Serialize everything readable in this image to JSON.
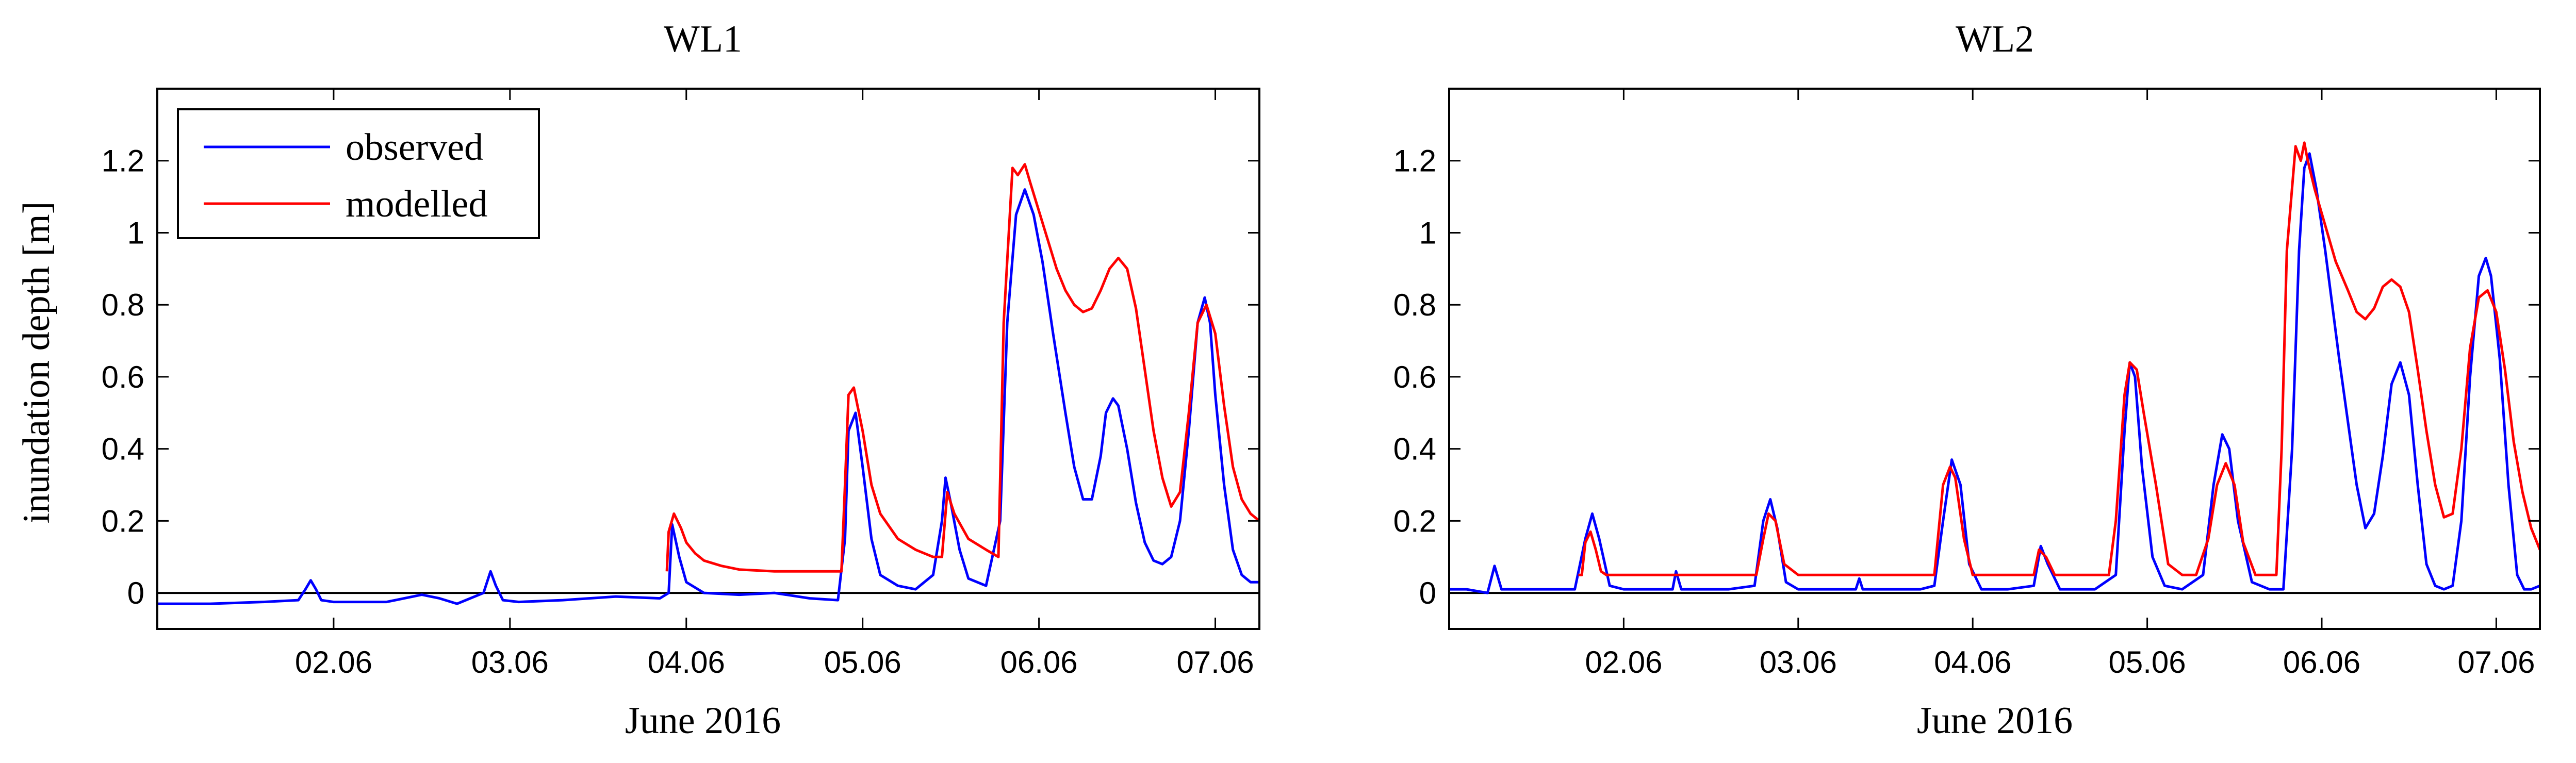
{
  "chart_data": [
    {
      "type": "line",
      "title": "WL1",
      "xlabel": "June 2016",
      "ylabel": "inundation depth [m]",
      "xlim": [
        1.0,
        7.25
      ],
      "ylim": [
        -0.1,
        1.4
      ],
      "xticks": [
        2,
        3,
        4,
        5,
        6,
        7
      ],
      "xticklabels": [
        "02.06",
        "03.06",
        "04.06",
        "05.06",
        "06.06",
        "07.06"
      ],
      "yticks": [
        0,
        0.2,
        0.4,
        0.6,
        0.8,
        1,
        1.2
      ],
      "yticklabels": [
        "0",
        "0.2",
        "0.4",
        "0.6",
        "0.8",
        "1",
        "1.2"
      ],
      "legend": {
        "position": "top-left",
        "entries": [
          "observed",
          "modelled"
        ]
      },
      "colors": {
        "observed": "#0000ff",
        "modelled": "#ff0000",
        "zero_line": "#000000"
      },
      "series": [
        {
          "name": "observed",
          "x": [
            1.0,
            1.3,
            1.6,
            1.8,
            1.84,
            1.87,
            1.9,
            1.93,
            2.0,
            2.3,
            2.5,
            2.6,
            2.7,
            2.85,
            2.89,
            2.92,
            2.96,
            3.05,
            3.3,
            3.6,
            3.85,
            3.9,
            3.92,
            3.96,
            4.0,
            4.1,
            4.3,
            4.5,
            4.7,
            4.86,
            4.9,
            4.92,
            4.96,
            5.0,
            5.05,
            5.1,
            5.2,
            5.3,
            5.4,
            5.45,
            5.47,
            5.5,
            5.55,
            5.6,
            5.7,
            5.78,
            5.82,
            5.87,
            5.92,
            5.97,
            6.02,
            6.08,
            6.15,
            6.2,
            6.25,
            6.3,
            6.35,
            6.38,
            6.42,
            6.45,
            6.5,
            6.55,
            6.6,
            6.65,
            6.7,
            6.75,
            6.8,
            6.85,
            6.9,
            6.94,
            6.97,
            7.0,
            7.05,
            7.1,
            7.15,
            7.2,
            7.25
          ],
          "y": [
            -0.03,
            -0.03,
            -0.025,
            -0.02,
            0.01,
            0.035,
            0.01,
            -0.02,
            -0.025,
            -0.025,
            -0.005,
            -0.015,
            -0.03,
            0.0,
            0.06,
            0.02,
            -0.02,
            -0.025,
            -0.02,
            -0.01,
            -0.015,
            0.0,
            0.19,
            0.1,
            0.03,
            0.0,
            -0.005,
            0.0,
            -0.015,
            -0.02,
            0.15,
            0.45,
            0.5,
            0.35,
            0.15,
            0.05,
            0.02,
            0.01,
            0.05,
            0.2,
            0.32,
            0.25,
            0.12,
            0.04,
            0.02,
            0.2,
            0.75,
            1.05,
            1.12,
            1.05,
            0.92,
            0.72,
            0.5,
            0.35,
            0.26,
            0.26,
            0.38,
            0.5,
            0.54,
            0.52,
            0.4,
            0.25,
            0.14,
            0.09,
            0.08,
            0.1,
            0.2,
            0.45,
            0.75,
            0.82,
            0.75,
            0.55,
            0.3,
            0.12,
            0.05,
            0.03,
            0.03
          ]
        },
        {
          "name": "modelled",
          "x": [
            3.89,
            3.9,
            3.93,
            3.97,
            4.0,
            4.05,
            4.1,
            4.2,
            4.3,
            4.5,
            4.7,
            4.88,
            4.9,
            4.92,
            4.95,
            5.0,
            5.05,
            5.1,
            5.2,
            5.3,
            5.4,
            5.45,
            5.48,
            5.52,
            5.6,
            5.7,
            5.77,
            5.8,
            5.85,
            5.88,
            5.92,
            5.95,
            6.0,
            6.05,
            6.1,
            6.15,
            6.2,
            6.25,
            6.3,
            6.35,
            6.4,
            6.45,
            6.5,
            6.55,
            6.6,
            6.65,
            6.7,
            6.75,
            6.8,
            6.85,
            6.9,
            6.95,
            7.0,
            7.05,
            7.1,
            7.15,
            7.2,
            7.25
          ],
          "y": [
            0.06,
            0.17,
            0.22,
            0.18,
            0.14,
            0.11,
            0.09,
            0.075,
            0.065,
            0.06,
            0.06,
            0.06,
            0.3,
            0.55,
            0.57,
            0.45,
            0.3,
            0.22,
            0.15,
            0.12,
            0.1,
            0.1,
            0.28,
            0.22,
            0.15,
            0.12,
            0.1,
            0.75,
            1.18,
            1.16,
            1.19,
            1.14,
            1.06,
            0.98,
            0.9,
            0.84,
            0.8,
            0.78,
            0.79,
            0.84,
            0.9,
            0.93,
            0.9,
            0.79,
            0.62,
            0.45,
            0.32,
            0.24,
            0.28,
            0.5,
            0.75,
            0.8,
            0.72,
            0.52,
            0.35,
            0.26,
            0.22,
            0.2
          ]
        }
      ]
    },
    {
      "type": "line",
      "title": "WL2",
      "xlabel": "June 2016",
      "ylabel": "",
      "xlim": [
        1.0,
        7.25
      ],
      "ylim": [
        -0.1,
        1.4
      ],
      "xticks": [
        2,
        3,
        4,
        5,
        6,
        7
      ],
      "xticklabels": [
        "02.06",
        "03.06",
        "04.06",
        "05.06",
        "06.06",
        "07.06"
      ],
      "yticks": [
        0,
        0.2,
        0.4,
        0.6,
        0.8,
        1,
        1.2
      ],
      "yticklabels": [
        "0",
        "0.2",
        "0.4",
        "0.6",
        "0.8",
        "1",
        "1.2"
      ],
      "colors": {
        "observed": "#0000ff",
        "modelled": "#ff0000",
        "zero_line": "#000000"
      },
      "series": [
        {
          "name": "observed",
          "x": [
            1.0,
            1.1,
            1.22,
            1.26,
            1.3,
            1.4,
            1.6,
            1.72,
            1.78,
            1.82,
            1.86,
            1.92,
            2.0,
            2.2,
            2.28,
            2.3,
            2.33,
            2.4,
            2.6,
            2.75,
            2.8,
            2.84,
            2.88,
            2.93,
            3.0,
            3.2,
            3.33,
            3.35,
            3.37,
            3.5,
            3.7,
            3.78,
            3.83,
            3.88,
            3.93,
            3.98,
            4.05,
            4.2,
            4.35,
            4.39,
            4.43,
            4.5,
            4.7,
            4.82,
            4.87,
            4.9,
            4.93,
            4.97,
            5.03,
            5.1,
            5.2,
            5.32,
            5.38,
            5.43,
            5.47,
            5.52,
            5.6,
            5.7,
            5.78,
            5.83,
            5.87,
            5.9,
            5.93,
            5.97,
            6.02,
            6.1,
            6.2,
            6.25,
            6.3,
            6.35,
            6.4,
            6.45,
            6.5,
            6.55,
            6.6,
            6.65,
            6.7,
            6.75,
            6.8,
            6.85,
            6.9,
            6.94,
            6.97,
            7.02,
            7.07,
            7.12,
            7.16,
            7.2,
            7.25
          ],
          "y": [
            0.01,
            0.01,
            0.0,
            0.075,
            0.01,
            0.01,
            0.01,
            0.01,
            0.15,
            0.22,
            0.15,
            0.02,
            0.01,
            0.01,
            0.01,
            0.06,
            0.01,
            0.01,
            0.01,
            0.02,
            0.2,
            0.26,
            0.18,
            0.03,
            0.01,
            0.01,
            0.01,
            0.04,
            0.01,
            0.01,
            0.01,
            0.02,
            0.2,
            0.37,
            0.3,
            0.08,
            0.01,
            0.01,
            0.02,
            0.13,
            0.08,
            0.01,
            0.01,
            0.05,
            0.45,
            0.64,
            0.6,
            0.35,
            0.1,
            0.02,
            0.01,
            0.05,
            0.3,
            0.44,
            0.4,
            0.2,
            0.03,
            0.01,
            0.01,
            0.4,
            0.95,
            1.18,
            1.22,
            1.12,
            0.95,
            0.65,
            0.3,
            0.18,
            0.22,
            0.38,
            0.58,
            0.64,
            0.55,
            0.3,
            0.08,
            0.02,
            0.01,
            0.02,
            0.2,
            0.6,
            0.88,
            0.93,
            0.88,
            0.65,
            0.3,
            0.05,
            0.01,
            0.01,
            0.02
          ]
        },
        {
          "name": "modelled",
          "x": [
            1.74,
            1.76,
            1.78,
            1.81,
            1.84,
            1.87,
            1.9,
            2.0,
            2.2,
            2.4,
            2.6,
            2.76,
            2.8,
            2.83,
            2.87,
            2.92,
            3.0,
            3.2,
            3.4,
            3.6,
            3.78,
            3.83,
            3.87,
            3.9,
            3.95,
            4.0,
            4.05,
            4.2,
            4.35,
            4.38,
            4.42,
            4.47,
            4.6,
            4.78,
            4.82,
            4.87,
            4.9,
            4.94,
            4.98,
            5.05,
            5.12,
            5.2,
            5.28,
            5.35,
            5.4,
            5.45,
            5.5,
            5.55,
            5.62,
            5.7,
            5.74,
            5.77,
            5.8,
            5.85,
            5.88,
            5.9,
            5.92,
            5.96,
            6.02,
            6.08,
            6.15,
            6.2,
            6.25,
            6.3,
            6.35,
            6.4,
            6.45,
            6.5,
            6.55,
            6.6,
            6.65,
            6.7,
            6.75,
            6.8,
            6.85,
            6.9,
            6.95,
            7.0,
            7.05,
            7.1,
            7.15,
            7.2,
            7.25
          ],
          "y": [
            0.05,
            0.05,
            0.14,
            0.17,
            0.12,
            0.06,
            0.05,
            0.05,
            0.05,
            0.05,
            0.05,
            0.05,
            0.15,
            0.22,
            0.2,
            0.08,
            0.05,
            0.05,
            0.05,
            0.05,
            0.05,
            0.3,
            0.35,
            0.32,
            0.15,
            0.05,
            0.05,
            0.05,
            0.05,
            0.12,
            0.1,
            0.05,
            0.05,
            0.05,
            0.2,
            0.55,
            0.64,
            0.62,
            0.5,
            0.3,
            0.08,
            0.05,
            0.05,
            0.15,
            0.3,
            0.36,
            0.3,
            0.14,
            0.05,
            0.05,
            0.05,
            0.4,
            0.95,
            1.24,
            1.2,
            1.25,
            1.2,
            1.12,
            1.02,
            0.92,
            0.84,
            0.78,
            0.76,
            0.79,
            0.85,
            0.87,
            0.85,
            0.78,
            0.62,
            0.45,
            0.3,
            0.21,
            0.22,
            0.4,
            0.68,
            0.82,
            0.84,
            0.78,
            0.62,
            0.42,
            0.28,
            0.18,
            0.12
          ]
        }
      ]
    }
  ]
}
